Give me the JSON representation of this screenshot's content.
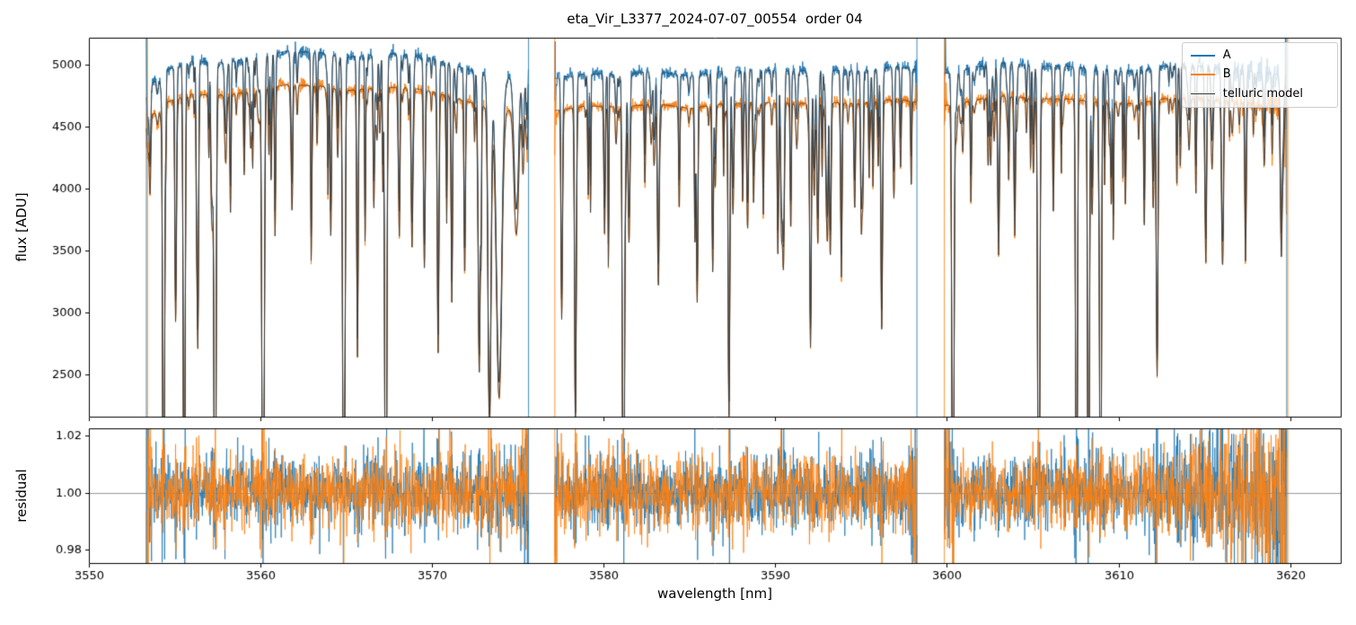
{
  "chart_data": {
    "type": "line",
    "title": "eta_Vir_L3377_2024-07-07_00554  order 04",
    "xlabel": "wavelength [nm]",
    "xlim": [
      3550,
      3623
    ],
    "xticks": [
      3550,
      3560,
      3570,
      3580,
      3590,
      3600,
      3610,
      3620
    ],
    "xticklabels": [
      "3550",
      "3560",
      "3570",
      "3580",
      "3590",
      "3600",
      "3610",
      "3620"
    ],
    "panels": [
      {
        "name": "flux",
        "ylabel": "flux [ADU]",
        "ylim": [
          2150,
          5220
        ],
        "yticks": [
          2500,
          3000,
          3500,
          4000,
          4500,
          5000
        ],
        "yticklabels": [
          "2500",
          "3000",
          "3500",
          "4000",
          "4500",
          "5000"
        ]
      },
      {
        "name": "residual",
        "ylabel": "residual",
        "ylim": [
          0.975,
          1.0225
        ],
        "yticks": [
          0.98,
          1.0,
          1.02
        ],
        "yticklabels": [
          "0.98",
          "1.00",
          "1.02"
        ],
        "hline": 1.0
      }
    ],
    "legend": [
      {
        "label": "A",
        "color": "#1f77b4",
        "lw": 2
      },
      {
        "label": "B",
        "color": "#ff7f0e",
        "lw": 2
      },
      {
        "label": "telluric model",
        "color": "#3b3b3b",
        "lw": 1
      }
    ],
    "colors": {
      "A": "#1f77b4",
      "B": "#ff7f0e",
      "telluric": "#3b3b3b",
      "hline": "#999999",
      "frame": "#000000"
    },
    "segments": [
      [
        3553.35,
        3575.62
      ],
      [
        3577.15,
        3598.25
      ],
      [
        3599.85,
        3619.8
      ]
    ],
    "continuum_A": [
      [
        3553.3,
        4800
      ],
      [
        3554.5,
        4960
      ],
      [
        3556,
        5030
      ],
      [
        3558,
        5020
      ],
      [
        3560,
        5070
      ],
      [
        3561.5,
        5110
      ],
      [
        3563.5,
        5100
      ],
      [
        3565,
        5060
      ],
      [
        3566.5,
        5080
      ],
      [
        3568,
        5090
      ],
      [
        3569.5,
        5070
      ],
      [
        3571,
        5010
      ],
      [
        3572.5,
        4950
      ],
      [
        3574,
        4880
      ],
      [
        3575.6,
        4950
      ],
      [
        3577.2,
        4890
      ],
      [
        3579,
        4930
      ],
      [
        3581,
        4920
      ],
      [
        3583,
        4950
      ],
      [
        3585,
        4910
      ],
      [
        3587,
        4950
      ],
      [
        3589,
        4960
      ],
      [
        3591,
        4950
      ],
      [
        3593,
        4960
      ],
      [
        3595,
        4950
      ],
      [
        3597,
        4990
      ],
      [
        3598.3,
        4960
      ],
      [
        3599.8,
        4930
      ],
      [
        3601,
        4960
      ],
      [
        3603,
        5020
      ],
      [
        3605,
        4990
      ],
      [
        3607,
        4990
      ],
      [
        3609,
        4960
      ],
      [
        3611,
        4950
      ],
      [
        3613,
        5000
      ],
      [
        3615,
        4990
      ],
      [
        3617,
        4960
      ],
      [
        3619.8,
        4920
      ]
    ],
    "b_scale": 0.947,
    "telluric_lines": [
      [
        3554.35,
        0.93,
        0.07
      ],
      [
        3555.05,
        0.3,
        0.06
      ],
      [
        3555.55,
        0.88,
        0.07
      ],
      [
        3556.35,
        0.42,
        0.06
      ],
      [
        3557.35,
        0.95,
        0.08
      ],
      [
        3558.25,
        0.2,
        0.05
      ],
      [
        3559.05,
        0.14,
        0.05
      ],
      [
        3560.15,
        0.96,
        0.09
      ],
      [
        3560.85,
        0.25,
        0.05
      ],
      [
        3561.85,
        0.12,
        0.05
      ],
      [
        3563.3,
        0.1,
        0.05
      ],
      [
        3564.1,
        0.18,
        0.05
      ],
      [
        3564.85,
        0.94,
        0.08
      ],
      [
        3565.65,
        0.45,
        0.06
      ],
      [
        3566.6,
        0.16,
        0.05
      ],
      [
        3567.3,
        0.95,
        0.08
      ],
      [
        3568.1,
        0.2,
        0.05
      ],
      [
        3569.55,
        0.3,
        0.07
      ],
      [
        3570.35,
        0.44,
        0.07
      ],
      [
        3571.15,
        0.35,
        0.06
      ],
      [
        3571.9,
        0.3,
        0.06
      ],
      [
        3572.75,
        0.45,
        0.08
      ],
      [
        3573.35,
        0.55,
        0.12
      ],
      [
        3573.9,
        0.5,
        0.22
      ],
      [
        3574.9,
        0.22,
        0.18
      ],
      [
        3575.3,
        0.12,
        0.08
      ],
      [
        3577.55,
        0.35,
        0.06
      ],
      [
        3578.35,
        0.55,
        0.07
      ],
      [
        3579.1,
        0.16,
        0.05
      ],
      [
        3580.05,
        0.22,
        0.06
      ],
      [
        3581.15,
        0.95,
        0.08
      ],
      [
        3582.4,
        0.14,
        0.05
      ],
      [
        3584.4,
        0.18,
        0.05
      ],
      [
        3585.45,
        0.32,
        0.06
      ],
      [
        3586.35,
        0.28,
        0.06
      ],
      [
        3587.3,
        0.55,
        0.07
      ],
      [
        3588.1,
        0.16,
        0.05
      ],
      [
        3589.3,
        0.2,
        0.05
      ],
      [
        3590.15,
        0.26,
        0.06
      ],
      [
        3590.9,
        0.22,
        0.05
      ],
      [
        3592.05,
        0.42,
        0.07
      ],
      [
        3593.05,
        0.18,
        0.05
      ],
      [
        3593.85,
        0.3,
        0.06
      ],
      [
        3595.1,
        0.16,
        0.05
      ],
      [
        3596.2,
        0.4,
        0.07
      ],
      [
        3597.3,
        0.12,
        0.05
      ],
      [
        3600.35,
        0.95,
        0.08
      ],
      [
        3601.4,
        0.18,
        0.05
      ],
      [
        3602.4,
        0.12,
        0.05
      ],
      [
        3603.6,
        0.14,
        0.05
      ],
      [
        3605.35,
        0.95,
        0.08
      ],
      [
        3606.2,
        0.2,
        0.05
      ],
      [
        3607.55,
        0.93,
        0.07
      ],
      [
        3608.25,
        0.94,
        0.07
      ],
      [
        3608.95,
        0.92,
        0.07
      ],
      [
        3610.4,
        0.18,
        0.05
      ],
      [
        3611.5,
        0.22,
        0.05
      ],
      [
        3612.25,
        0.45,
        0.07
      ],
      [
        3613.6,
        0.12,
        0.05
      ],
      [
        3615.1,
        0.16,
        0.05
      ],
      [
        3616.1,
        0.13,
        0.05
      ],
      [
        3617.4,
        0.28,
        0.06
      ],
      [
        3618.5,
        0.1,
        0.05
      ]
    ],
    "minor_lines": {
      "seed": 42,
      "per_nm": 2.8,
      "depth_min": 0.02,
      "depth_span": 0.25,
      "width_min": 0.03,
      "width_span": 0.05
    },
    "noise": {
      "seed": 7,
      "flux_sigma_frac": 0.005,
      "residual_sigma": 0.0062,
      "residual_cap": 0.028
    },
    "edge_spikes": [
      {
        "x": 3553.35,
        "colors": [
          "#1f77b4",
          "#ff7f0e"
        ]
      },
      {
        "x": 3575.62,
        "colors": [
          "#1f77b4"
        ]
      },
      {
        "x": 3577.15,
        "colors": [
          "#ff7f0e"
        ]
      },
      {
        "x": 3598.25,
        "colors": [
          "#1f77b4"
        ]
      },
      {
        "x": 3599.85,
        "colors": [
          "#ff7f0e"
        ]
      },
      {
        "x": 3619.8,
        "colors": [
          "#1f77b4",
          "#ff7f0e"
        ]
      }
    ]
  }
}
